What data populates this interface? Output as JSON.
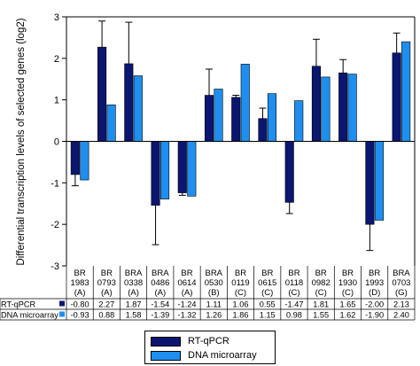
{
  "chart_data": {
    "type": "bar",
    "ylabel": "Differential transcription levels of selected genes (log2)",
    "ylim": [
      -3,
      3
    ],
    "yticks": [
      -3,
      -2,
      -1,
      0,
      1,
      2,
      3
    ],
    "categories": [
      {
        "line1": "BR",
        "line2": "1983",
        "line3": "(A)"
      },
      {
        "line1": "BR",
        "line2": "0793",
        "line3": "(A)"
      },
      {
        "line1": "BRA",
        "line2": "0338",
        "line3": "(A)"
      },
      {
        "line1": "BRA",
        "line2": "0486",
        "line3": "(A)"
      },
      {
        "line1": "BR",
        "line2": "0614",
        "line3": "(A)"
      },
      {
        "line1": "BRA",
        "line2": "0530",
        "line3": "(B)"
      },
      {
        "line1": "BR",
        "line2": "0119",
        "line3": "(C)"
      },
      {
        "line1": "BR",
        "line2": "0615",
        "line3": "(C)"
      },
      {
        "line1": "BR",
        "line2": "0118",
        "line3": "(C)"
      },
      {
        "line1": "BR",
        "line2": "0982",
        "line3": "(C)"
      },
      {
        "line1": "BR",
        "line2": "1930",
        "line3": "(C)"
      },
      {
        "line1": "BR",
        "line2": "1993",
        "line3": "(D)"
      },
      {
        "line1": "BRA",
        "line2": "0703",
        "line3": "(G)"
      }
    ],
    "series": [
      {
        "name": "RT-qPCR",
        "color": "#0b1670",
        "values": [
          -0.8,
          2.27,
          1.87,
          -1.54,
          -1.24,
          1.11,
          1.06,
          0.55,
          -1.47,
          1.81,
          1.65,
          -2.0,
          2.13
        ],
        "display": [
          "-0.80",
          "2.27",
          "1.87",
          "-1.54",
          "-1.24",
          "1.11",
          "1.06",
          "0.55",
          "-1.47",
          "1.81",
          "1.65",
          "-2.00",
          "2.13"
        ],
        "error": [
          0.27,
          0.63,
          1.0,
          0.95,
          0.06,
          0.63,
          0.05,
          0.25,
          0.27,
          0.65,
          0.32,
          0.63,
          0.48
        ]
      },
      {
        "name": "DNA microarray",
        "color": "#1e8ff0",
        "values": [
          -0.93,
          0.88,
          1.58,
          -1.39,
          -1.32,
          1.26,
          1.86,
          1.15,
          0.98,
          1.55,
          1.62,
          -1.9,
          2.4
        ],
        "display": [
          "-0.93",
          "0.88",
          "1.58",
          "-1.39",
          "-1.32",
          "1.26",
          "1.86",
          "1.15",
          "0.98",
          "1.55",
          "1.62",
          "-1.90",
          "2.40"
        ]
      }
    ],
    "legend_position": "bottom-center"
  }
}
